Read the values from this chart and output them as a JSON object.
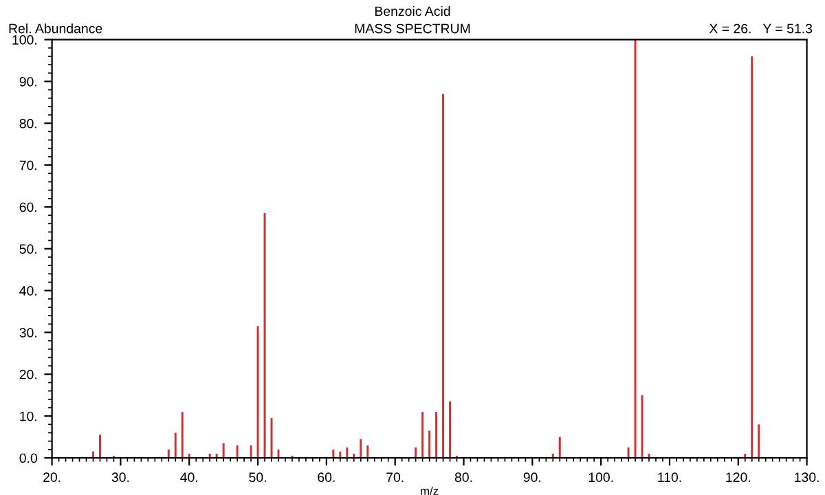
{
  "chart_data": {
    "type": "bar",
    "title": "Benzoic Acid",
    "subtitle": "MASS SPECTRUM",
    "ylabel": "Rel. Abundance",
    "xlabel": "m/z",
    "annotations": [
      "X = 26.   Y = 51.3"
    ],
    "x": [
      26,
      27,
      29,
      37,
      38,
      39,
      40,
      43,
      44,
      45,
      47,
      49,
      50,
      51,
      52,
      53,
      55,
      61,
      62,
      63,
      64,
      65,
      66,
      73,
      74,
      75,
      76,
      77,
      78,
      79,
      93,
      94,
      104,
      105,
      106,
      107,
      121,
      122,
      123
    ],
    "values": [
      1.5,
      5.5,
      0.5,
      2,
      6,
      11,
      1,
      1,
      1,
      3.5,
      3,
      3,
      31.5,
      58.5,
      9.5,
      2,
      0.5,
      2,
      1.5,
      2.5,
      1,
      4.5,
      3,
      2.5,
      11,
      6.5,
      11,
      87,
      13.5,
      0.5,
      1,
      5,
      2.5,
      100,
      15,
      1,
      1,
      96,
      8
    ],
    "color": "#cc3333",
    "xlim": [
      20,
      130
    ],
    "ylim": [
      0,
      100
    ],
    "xticks": [
      {
        "value": 20,
        "label": "20."
      },
      {
        "value": 30,
        "label": "30."
      },
      {
        "value": 40,
        "label": "40."
      },
      {
        "value": 50,
        "label": "50."
      },
      {
        "value": 60,
        "label": "60."
      },
      {
        "value": 70,
        "label": "70."
      },
      {
        "value": 80,
        "label": "80."
      },
      {
        "value": 90,
        "label": "90."
      },
      {
        "value": 100,
        "label": "100."
      },
      {
        "value": 110,
        "label": "110."
      },
      {
        "value": 120,
        "label": "120."
      },
      {
        "value": 130,
        "label": "130."
      }
    ],
    "yticks": [
      {
        "value": 0,
        "label": "0.0"
      },
      {
        "value": 10,
        "label": "10."
      },
      {
        "value": 20,
        "label": "20."
      },
      {
        "value": 30,
        "label": "30."
      },
      {
        "value": 40,
        "label": "40."
      },
      {
        "value": 50,
        "label": "50."
      },
      {
        "value": 60,
        "label": "60."
      },
      {
        "value": 70,
        "label": "70."
      },
      {
        "value": 80,
        "label": "80."
      },
      {
        "value": 90,
        "label": "90."
      },
      {
        "value": 100,
        "label": "100."
      }
    ],
    "grid": false
  }
}
